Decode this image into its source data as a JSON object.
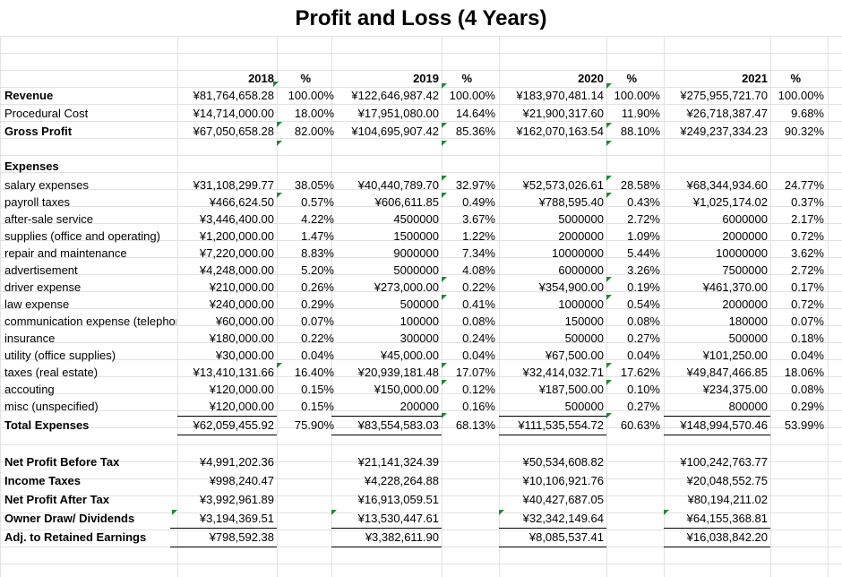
{
  "title": "Profit and Loss (4 Years)",
  "years": [
    "2018",
    "2019",
    "2020",
    "2021"
  ],
  "pct_symbol": "%",
  "income_rows": [
    {
      "label": "Revenue",
      "bold": true,
      "values": [
        "¥81,764,658.28",
        "¥122,646,987.42",
        "¥183,970,481.14",
        "¥275,955,721.70"
      ],
      "pcts": [
        "100.00%",
        "100.00%",
        "100.00%",
        "100.00%"
      ]
    },
    {
      "label": "Procedural Cost",
      "bold": false,
      "values": [
        "¥14,714,000.00",
        "¥17,951,080.00",
        "¥21,900,317.60",
        "¥26,718,387.47"
      ],
      "pcts": [
        "18.00%",
        "14.64%",
        "11.90%",
        "9.68%"
      ]
    },
    {
      "label": "Gross Profit",
      "bold": true,
      "values": [
        "¥67,050,658.28",
        "¥104,695,907.42",
        "¥162,070,163.54",
        "¥249,237,334.23"
      ],
      "pcts": [
        "82.00%",
        "85.36%",
        "88.10%",
        "90.32%"
      ]
    }
  ],
  "expenses_heading": "Expenses",
  "expense_rows": [
    {
      "label": "salary expenses",
      "values": [
        "¥31,108,299.77",
        "¥40,440,789.70",
        "¥52,573,026.61",
        "¥68,344,934.60"
      ],
      "pcts": [
        "38.05%",
        "32.97%",
        "28.58%",
        "24.77%"
      ]
    },
    {
      "label": "payroll taxes",
      "values": [
        "¥466,624.50",
        "¥606,611.85",
        "¥788,595.40",
        "¥1,025,174.02"
      ],
      "pcts": [
        "0.57%",
        "0.49%",
        "0.43%",
        "0.37%"
      ]
    },
    {
      "label": "after-sale service",
      "values": [
        "¥3,446,400.00",
        "4500000",
        "5000000",
        "6000000"
      ],
      "pcts": [
        "4.22%",
        "3.67%",
        "2.72%",
        "2.17%"
      ]
    },
    {
      "label": "supplies (office and operating)",
      "values": [
        "¥1,200,000.00",
        "1500000",
        "2000000",
        "2000000"
      ],
      "pcts": [
        "1.47%",
        "1.22%",
        "1.09%",
        "0.72%"
      ]
    },
    {
      "label": "repair and maintenance",
      "values": [
        "¥7,220,000.00",
        "9000000",
        "10000000",
        "10000000"
      ],
      "pcts": [
        "8.83%",
        "7.34%",
        "5.44%",
        "3.62%"
      ]
    },
    {
      "label": "advertisement",
      "values": [
        "¥4,248,000.00",
        "5000000",
        "6000000",
        "7500000"
      ],
      "pcts": [
        "5.20%",
        "4.08%",
        "3.26%",
        "2.72%"
      ]
    },
    {
      "label": "driver expense",
      "values": [
        "¥210,000.00",
        "¥273,000.00",
        "¥354,900.00",
        "¥461,370.00"
      ],
      "pcts": [
        "0.26%",
        "0.22%",
        "0.19%",
        "0.17%"
      ]
    },
    {
      "label": "law expense",
      "values": [
        "¥240,000.00",
        "500000",
        "1000000",
        "2000000"
      ],
      "pcts": [
        "0.29%",
        "0.41%",
        "0.54%",
        "0.72%"
      ]
    },
    {
      "label": "communication expense (telephone)",
      "values": [
        "¥60,000.00",
        "100000",
        "150000",
        "180000"
      ],
      "pcts": [
        "0.07%",
        "0.08%",
        "0.08%",
        "0.07%"
      ]
    },
    {
      "label": "insurance",
      "values": [
        "¥180,000.00",
        "300000",
        "500000",
        "500000"
      ],
      "pcts": [
        "0.22%",
        "0.24%",
        "0.27%",
        "0.18%"
      ]
    },
    {
      "label": "utility (office supplies)",
      "values": [
        "¥30,000.00",
        "¥45,000.00",
        "¥67,500.00",
        "¥101,250.00"
      ],
      "pcts": [
        "0.04%",
        "0.04%",
        "0.04%",
        "0.04%"
      ]
    },
    {
      "label": "taxes (real estate)",
      "values": [
        "¥13,410,131.66",
        "¥20,939,181.48",
        "¥32,414,032.71",
        "¥49,847,466.85"
      ],
      "pcts": [
        "16.40%",
        "17.07%",
        "17.62%",
        "18.06%"
      ]
    },
    {
      "label": "accouting",
      "values": [
        "¥120,000.00",
        "¥150,000.00",
        "¥187,500.00",
        "¥234,375.00"
      ],
      "pcts": [
        "0.15%",
        "0.12%",
        "0.10%",
        "0.08%"
      ]
    },
    {
      "label": "misc (unspecified)",
      "values": [
        "¥120,000.00",
        "200000",
        "500000",
        "800000"
      ],
      "pcts": [
        "0.15%",
        "0.16%",
        "0.27%",
        "0.29%"
      ]
    }
  ],
  "total_expenses": {
    "label": "Total Expenses",
    "values": [
      "¥62,059,455.92",
      "¥83,554,583.03",
      "¥111,535,554.72",
      "¥148,994,570.46"
    ],
    "pcts": [
      "75.90%",
      "68.13%",
      "60.63%",
      "53.99%"
    ]
  },
  "summary_rows": [
    {
      "label": "Net Profit Before Tax",
      "values": [
        "¥4,991,202.36",
        "¥21,141,324.39",
        "¥50,534,608.82",
        "¥100,242,763.77"
      ]
    },
    {
      "label": "Income Taxes",
      "values": [
        "¥998,240.47",
        "¥4,228,264.88",
        "¥10,106,921.76",
        "¥20,048,552.75"
      ]
    },
    {
      "label": "Net Profit After Tax",
      "values": [
        "¥3,992,961.89",
        "¥16,913,059.51",
        "¥40,427,687.05",
        "¥80,194,211.02"
      ]
    },
    {
      "label": "Owner Draw/ Dividends",
      "values": [
        "¥3,194,369.51",
        "¥13,530,447.61",
        "¥32,342,149.64",
        "¥64,155,368.81"
      ]
    },
    {
      "label": "Adj. to Retained Earnings",
      "values": [
        "¥798,592.38",
        "¥3,382,611.90",
        "¥8,085,537.41",
        "¥16,038,842.20"
      ]
    }
  ],
  "colors": {
    "grid": "#e2e2e2",
    "error_indicator": "#1e8a32",
    "text": "#000000"
  }
}
